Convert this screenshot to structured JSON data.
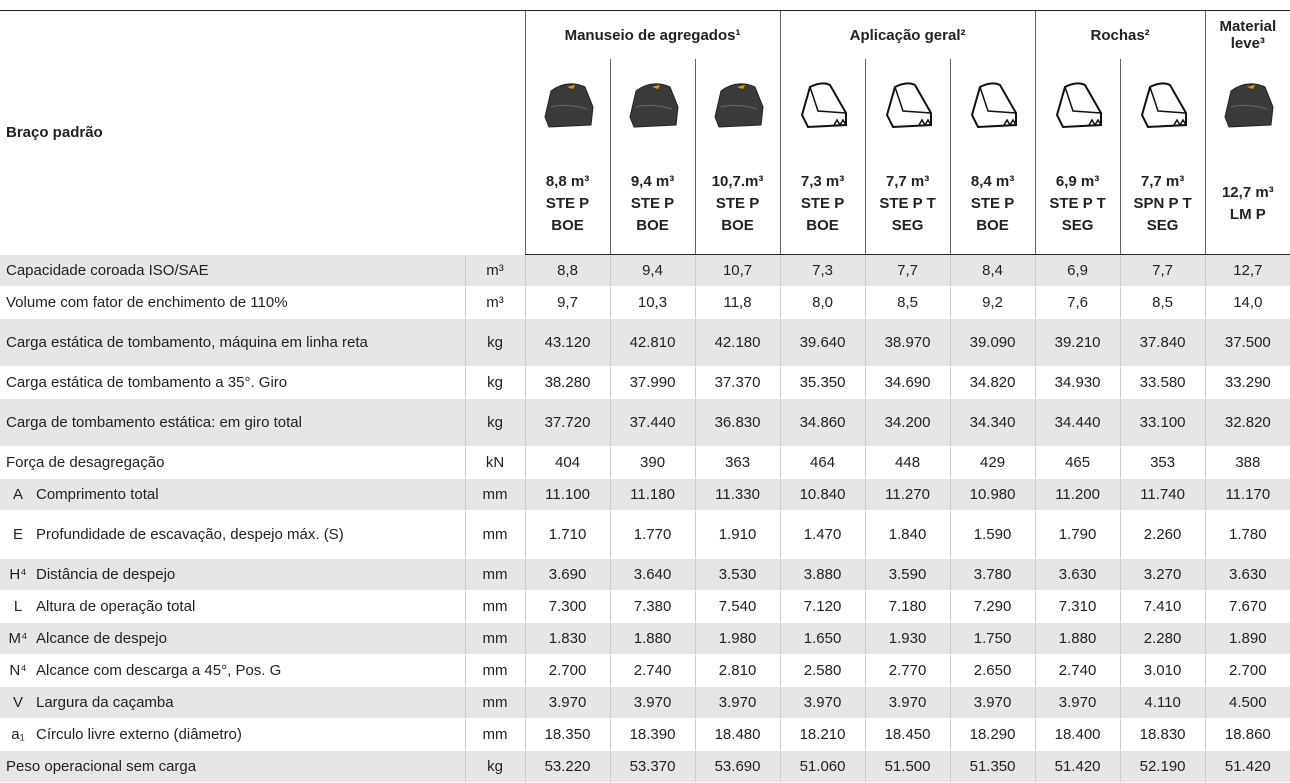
{
  "header": {
    "row_label": "Braço padrão",
    "groups": [
      {
        "label": "Manuseio de agregados¹",
        "span": 3
      },
      {
        "label": "Aplicação geral²",
        "span": 3
      },
      {
        "label": "Rochas²",
        "span": 2
      },
      {
        "label": "Material leve³",
        "span": 1
      }
    ],
    "buckets": [
      {
        "icon": "solid",
        "lines": [
          "8,8 m³",
          "STE P",
          "BOE"
        ]
      },
      {
        "icon": "solid",
        "lines": [
          "9,4 m³",
          "STE P",
          "BOE"
        ]
      },
      {
        "icon": "solid",
        "lines": [
          "10,7.m³",
          "STE P",
          "BOE"
        ]
      },
      {
        "icon": "outline",
        "lines": [
          "7,3 m³",
          "STE P",
          "BOE"
        ]
      },
      {
        "icon": "outline",
        "lines": [
          "7,7 m³",
          "STE P T",
          "SEG"
        ]
      },
      {
        "icon": "outline",
        "lines": [
          "8,4 m³",
          "STE P",
          "BOE"
        ]
      },
      {
        "icon": "outline",
        "lines": [
          "6,9 m³",
          "STE P T",
          "SEG"
        ]
      },
      {
        "icon": "outline",
        "lines": [
          "7,7 m³",
          "SPN P T",
          "SEG"
        ]
      },
      {
        "icon": "solid",
        "lines": [
          "12,7 m³",
          "LM P"
        ]
      }
    ]
  },
  "table": {
    "rows": [
      {
        "label": "Capacidade coroada ISO/SAE",
        "unit": "m³",
        "values": [
          "8,8",
          "9,4",
          "10,7",
          "7,3",
          "7,7",
          "8,4",
          "6,9",
          "7,7",
          "12,7"
        ]
      },
      {
        "label": "Volume com fator de enchimento de 110%",
        "unit": "m³",
        "values": [
          "9,7",
          "10,3",
          "11,8",
          "8,0",
          "8,5",
          "9,2",
          "7,6",
          "8,5",
          "14,0"
        ]
      },
      {
        "label": "Carga estática de tombamento, máquina em linha reta",
        "unit": "kg",
        "values": [
          "43.120",
          "42.810",
          "42.180",
          "39.640",
          "38.970",
          "39.090",
          "39.210",
          "37.840",
          "37.500"
        ]
      },
      {
        "label": "Carga estática de tombamento a 35°. Giro",
        "unit": "kg",
        "values": [
          "38.280",
          "37.990",
          "37.370",
          "35.350",
          "34.690",
          "34.820",
          "34.930",
          "33.580",
          "33.290"
        ]
      },
      {
        "label": "Carga de tombamento estática: em giro total",
        "unit": "kg",
        "values": [
          "37.720",
          "37.440",
          "36.830",
          "34.860",
          "34.200",
          "34.340",
          "34.440",
          "33.100",
          "32.820"
        ]
      },
      {
        "label": "Força de desagregação",
        "unit": "kN",
        "values": [
          "404",
          "390",
          "363",
          "464",
          "448",
          "429",
          "465",
          "353",
          "388"
        ]
      },
      {
        "code": "A",
        "label": "Comprimento total",
        "unit": "mm",
        "values": [
          "11.100",
          "11.180",
          "11.330",
          "10.840",
          "11.270",
          "10.980",
          "11.200",
          "11.740",
          "11.170"
        ]
      },
      {
        "code": "E",
        "label": "Profundidade de escavação, despejo máx. (S)",
        "unit": "mm",
        "values": [
          "1.710",
          "1.770",
          "1.910",
          "1.470",
          "1.840",
          "1.590",
          "1.790",
          "2.260",
          "1.780"
        ]
      },
      {
        "code": "H⁴",
        "label": "Distância de despejo",
        "unit": "mm",
        "values": [
          "3.690",
          "3.640",
          "3.530",
          "3.880",
          "3.590",
          "3.780",
          "3.630",
          "3.270",
          "3.630"
        ]
      },
      {
        "code": "L",
        "label": "Altura de operação total",
        "unit": "mm",
        "values": [
          "7.300",
          "7.380",
          "7.540",
          "7.120",
          "7.180",
          "7.290",
          "7.310",
          "7.410",
          "7.670"
        ]
      },
      {
        "code": "M⁴",
        "label": "Alcance de despejo",
        "unit": "mm",
        "values": [
          "1.830",
          "1.880",
          "1.980",
          "1.650",
          "1.930",
          "1.750",
          "1.880",
          "2.280",
          "1.890"
        ]
      },
      {
        "code": "N⁴",
        "label": "Alcance com descarga a 45°, Pos. G",
        "unit": "mm",
        "values": [
          "2.700",
          "2.740",
          "2.810",
          "2.580",
          "2.770",
          "2.650",
          "2.740",
          "3.010",
          "2.700"
        ]
      },
      {
        "code": "V",
        "label": "Largura da caçamba",
        "unit": "mm",
        "values": [
          "3.970",
          "3.970",
          "3.970",
          "3.970",
          "3.970",
          "3.970",
          "3.970",
          "4.110",
          "4.500"
        ]
      },
      {
        "code": "a₁",
        "label": "Círculo livre externo (diâmetro)",
        "unit": "mm",
        "values": [
          "18.350",
          "18.390",
          "18.480",
          "18.210",
          "18.450",
          "18.290",
          "18.400",
          "18.830",
          "18.860"
        ]
      },
      {
        "label": "Peso operacional sem carga",
        "unit": "kg",
        "values": [
          "53.220",
          "53.370",
          "53.690",
          "51.060",
          "51.500",
          "51.350",
          "51.420",
          "52.190",
          "51.420"
        ]
      }
    ]
  }
}
